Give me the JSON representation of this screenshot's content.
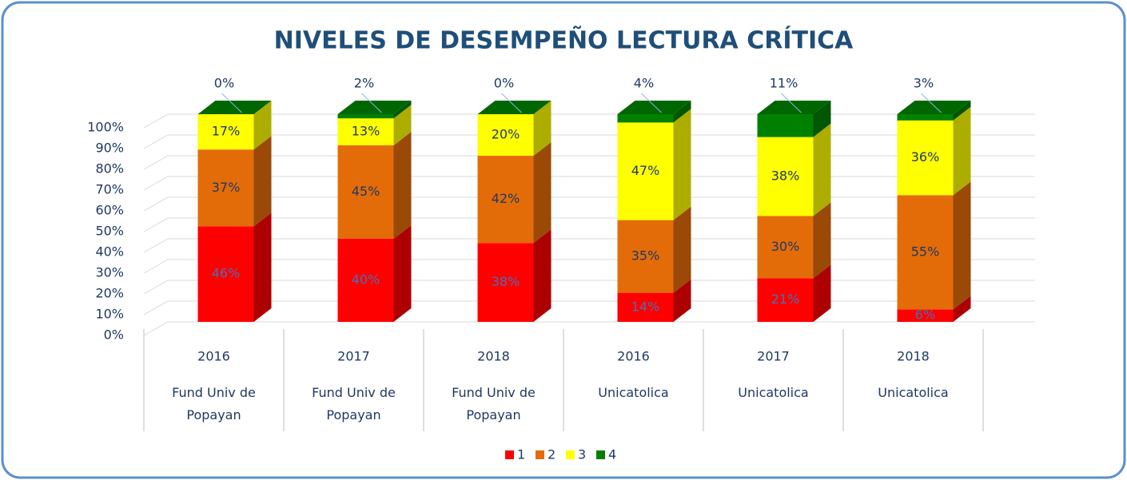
{
  "chart_data": {
    "type": "stacked_bar_3d",
    "title": "NIVELES DE DESEMPEÑO LECTURA CRÍTICA",
    "categories": [
      {
        "year": "2016",
        "group": "Fund Univ de Popayan"
      },
      {
        "year": "2017",
        "group": "Fund Univ de Popayan"
      },
      {
        "year": "2018",
        "group": "Fund Univ de Popayan"
      },
      {
        "year": "2016",
        "group": "Unicatolica"
      },
      {
        "year": "2017",
        "group": "Unicatolica"
      },
      {
        "year": "2018",
        "group": "Unicatolica"
      }
    ],
    "series": [
      {
        "name": "1",
        "color": "#ff0000",
        "values": [
          46,
          40,
          38,
          14,
          21,
          6
        ],
        "value_labels": [
          "46%",
          "40%",
          "38%",
          "14%",
          "21%",
          "6%"
        ]
      },
      {
        "name": "2",
        "color": "#e36c09",
        "values": [
          37,
          45,
          42,
          35,
          30,
          55
        ],
        "value_labels": [
          "37%",
          "45%",
          "42%",
          "35%",
          "30%",
          "55%"
        ]
      },
      {
        "name": "3",
        "color": "#ffff00",
        "values": [
          17,
          13,
          20,
          47,
          38,
          36
        ],
        "value_labels": [
          "17%",
          "13%",
          "20%",
          "47%",
          "38%",
          "36%"
        ]
      },
      {
        "name": "4",
        "color": "#008000",
        "values": [
          0,
          2,
          0,
          4,
          11,
          3
        ],
        "value_labels": [
          "0%",
          "2%",
          "0%",
          "4%",
          "11%",
          "3%"
        ]
      }
    ],
    "ylim": [
      0,
      100
    ],
    "yticks": [
      {
        "value": 0,
        "label": "0%"
      },
      {
        "value": 10,
        "label": "10%"
      },
      {
        "value": 20,
        "label": "20%"
      },
      {
        "value": 30,
        "label": "30%"
      },
      {
        "value": 40,
        "label": "40%"
      },
      {
        "value": 50,
        "label": "50%"
      },
      {
        "value": 60,
        "label": "60%"
      },
      {
        "value": 70,
        "label": "70%"
      },
      {
        "value": 80,
        "label": "80%"
      },
      {
        "value": 90,
        "label": "90%"
      },
      {
        "value": 100,
        "label": "100%"
      }
    ],
    "grid": true,
    "legend": "bottom"
  }
}
